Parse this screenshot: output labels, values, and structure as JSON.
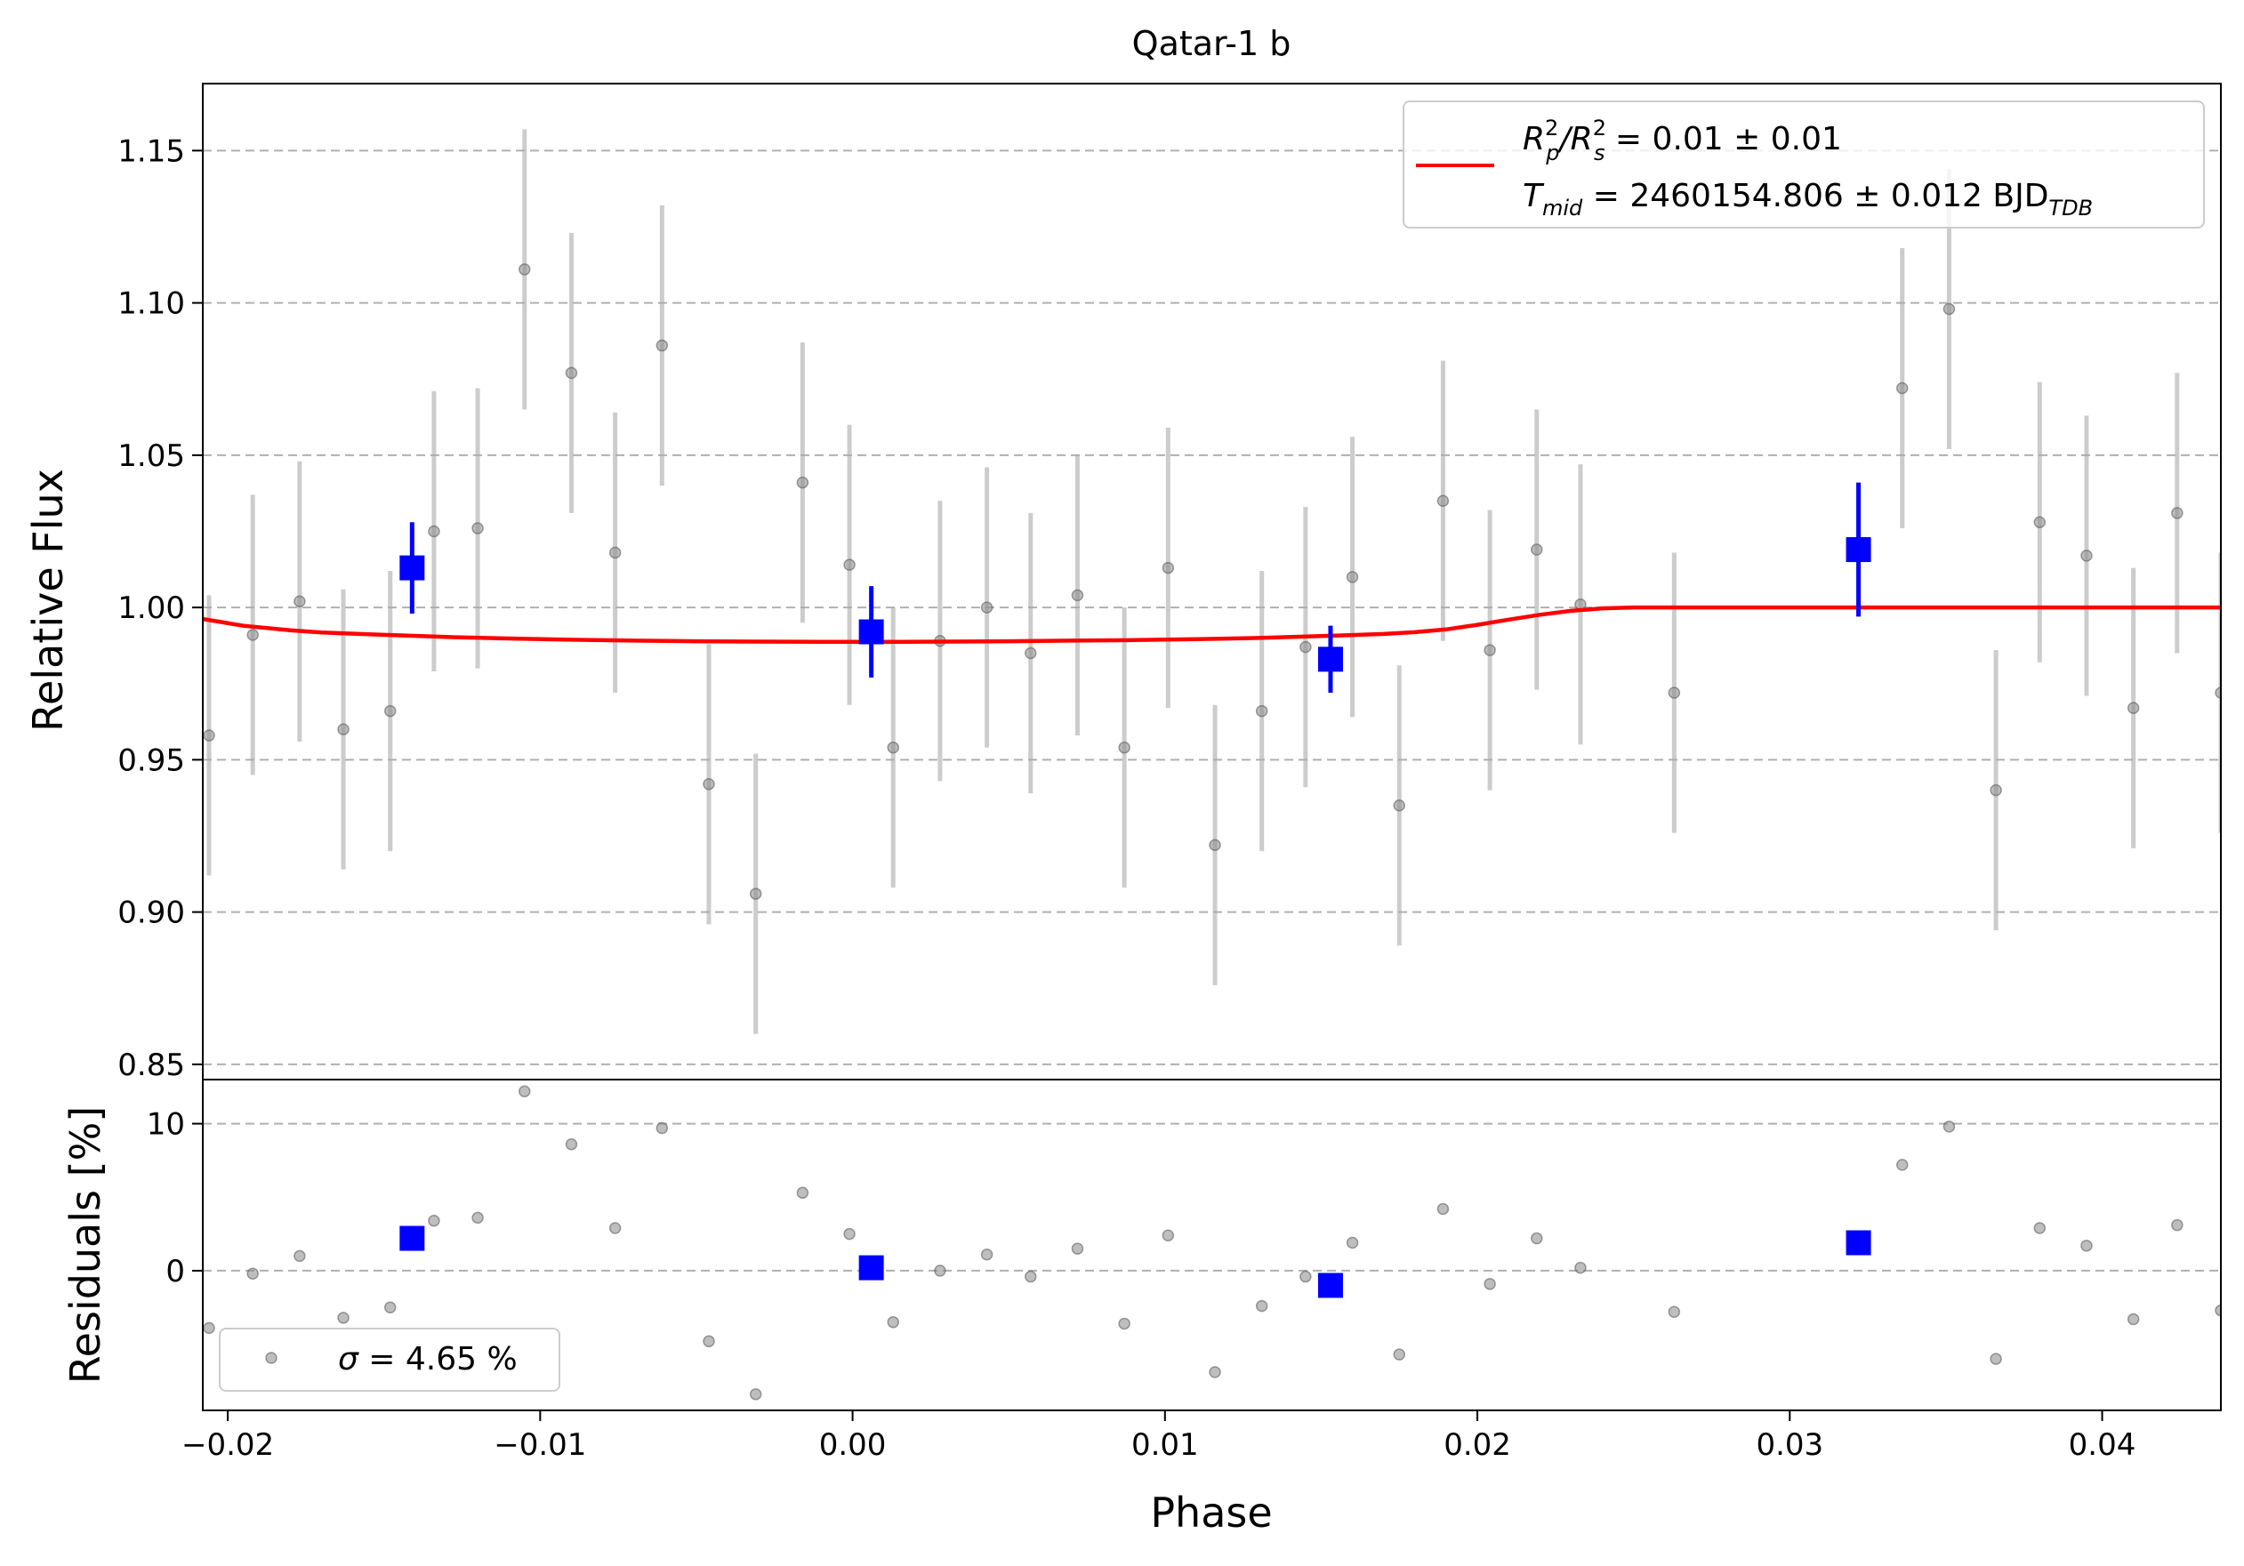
{
  "chart_data": {
    "type": "scatter",
    "title": "Qatar-1 b",
    "xlabel": "Phase",
    "xlim": [
      -0.0208,
      0.0438
    ],
    "xticks": [
      -0.02,
      -0.01,
      0.0,
      0.01,
      0.02,
      0.03,
      0.04
    ],
    "xtick_labels": [
      "−0.02",
      "−0.01",
      "0.00",
      "0.01",
      "0.02",
      "0.03",
      "0.04"
    ],
    "top_panel": {
      "ylabel": "Relative Flux",
      "ylim": [
        0.845,
        1.172
      ],
      "yticks": [
        0.85,
        0.9,
        0.95,
        1.0,
        1.05,
        1.1,
        1.15
      ],
      "ytick_labels": [
        "0.85",
        "0.90",
        "0.95",
        "1.00",
        "1.05",
        "1.10",
        "1.15"
      ],
      "grid": "horizontal dashed",
      "raw_data": {
        "x": [
          -0.0206,
          -0.0192,
          -0.0177,
          -0.0163,
          -0.0148,
          -0.0134,
          -0.012,
          -0.0105,
          -0.009,
          -0.0076,
          -0.0061,
          -0.0046,
          -0.0031,
          -0.0016,
          -0.0001,
          0.0013,
          0.0028,
          0.0043,
          0.0057,
          0.0072,
          0.0087,
          0.0101,
          0.0116,
          0.0131,
          0.0145,
          0.016,
          0.0175,
          0.0189,
          0.0204,
          0.0219,
          0.0233,
          0.0263,
          0.0336,
          0.0351,
          0.0366,
          0.038,
          0.0395,
          0.041,
          0.0424,
          0.0438
        ],
        "y": [
          0.958,
          0.991,
          1.002,
          0.96,
          0.966,
          1.025,
          1.026,
          1.111,
          1.077,
          1.018,
          1.086,
          0.942,
          0.906,
          1.041,
          1.014,
          0.954,
          0.989,
          1.0,
          0.985,
          1.004,
          0.954,
          1.013,
          0.922,
          0.966,
          0.987,
          1.01,
          0.935,
          1.035,
          0.986,
          1.019,
          1.001,
          0.972,
          1.072,
          1.098,
          0.94,
          1.028,
          1.017,
          0.967,
          1.031,
          0.972
        ],
        "yerr": 0.046,
        "color": "#aaaaaa"
      },
      "binned_data": {
        "x": [
          -0.0141,
          0.0006,
          0.0153,
          0.0322
        ],
        "y": [
          1.013,
          0.992,
          0.983,
          1.019
        ],
        "yerr": [
          0.015,
          0.015,
          0.011,
          0.022
        ],
        "color": "#0000ff"
      },
      "model": {
        "color": "#ff0000",
        "x": [
          -0.0208,
          -0.0195,
          -0.018,
          -0.017,
          -0.015,
          -0.013,
          -0.011,
          -0.009,
          -0.007,
          -0.005,
          -0.003,
          -0.001,
          0.001,
          0.003,
          0.005,
          0.007,
          0.009,
          0.011,
          0.013,
          0.015,
          0.017,
          0.018,
          0.019,
          0.02,
          0.021,
          0.022,
          0.023,
          0.024,
          0.025,
          0.027,
          0.03,
          0.035,
          0.04,
          0.0438
        ],
        "y": [
          0.9962,
          0.994,
          0.9925,
          0.9918,
          0.991,
          0.9903,
          0.9898,
          0.9894,
          0.9891,
          0.9889,
          0.9888,
          0.9887,
          0.9887,
          0.9888,
          0.9889,
          0.9891,
          0.9893,
          0.9896,
          0.99,
          0.9906,
          0.9913,
          0.9919,
          0.9928,
          0.9943,
          0.996,
          0.9976,
          0.9989,
          0.9997,
          1.0,
          1.0,
          1.0,
          1.0,
          1.0,
          1.0
        ]
      },
      "legend": {
        "position": "top-right",
        "line1": {
          "lhs_base": "R",
          "lhs_sup1": "2",
          "lhs_sub1": "p",
          "lhs_sep": "/R",
          "lhs_sup2": "2",
          "lhs_sub2": "s",
          "rhs": " = 0.01 ± 0.01"
        },
        "line2": {
          "lhs_base": "T",
          "lhs_sub": "mid",
          "rhs": " = 2460154.806 ± 0.012 BJD",
          "unit_sub": "TDB"
        }
      }
    },
    "bottom_panel": {
      "ylabel": "Residuals [%]",
      "ylim": [
        -9.5,
        13.0
      ],
      "yticks": [
        0,
        10
      ],
      "ytick_labels": [
        "0",
        "10"
      ],
      "grid": "horizontal dashed",
      "raw_residuals": [
        -3.9,
        -0.2,
        1.0,
        -3.2,
        -2.5,
        3.4,
        3.6,
        12.2,
        8.6,
        2.9,
        9.7,
        -4.8,
        -8.4,
        5.3,
        2.5,
        -3.5,
        0.0,
        1.1,
        -0.4,
        1.5,
        -3.6,
        2.4,
        -6.9,
        -2.4,
        -0.4,
        1.9,
        -5.7,
        4.2,
        -0.9,
        2.2,
        0.2,
        -2.8,
        7.2,
        9.8,
        -6.0,
        2.9,
        1.7,
        -3.3,
        3.1,
        -2.7
      ],
      "binned_residuals": [
        2.2,
        0.2,
        -1.0,
        1.9
      ],
      "legend": {
        "position": "bottom-left",
        "label_sym": "σ",
        "label_rest": " = 4.65 %"
      }
    }
  }
}
